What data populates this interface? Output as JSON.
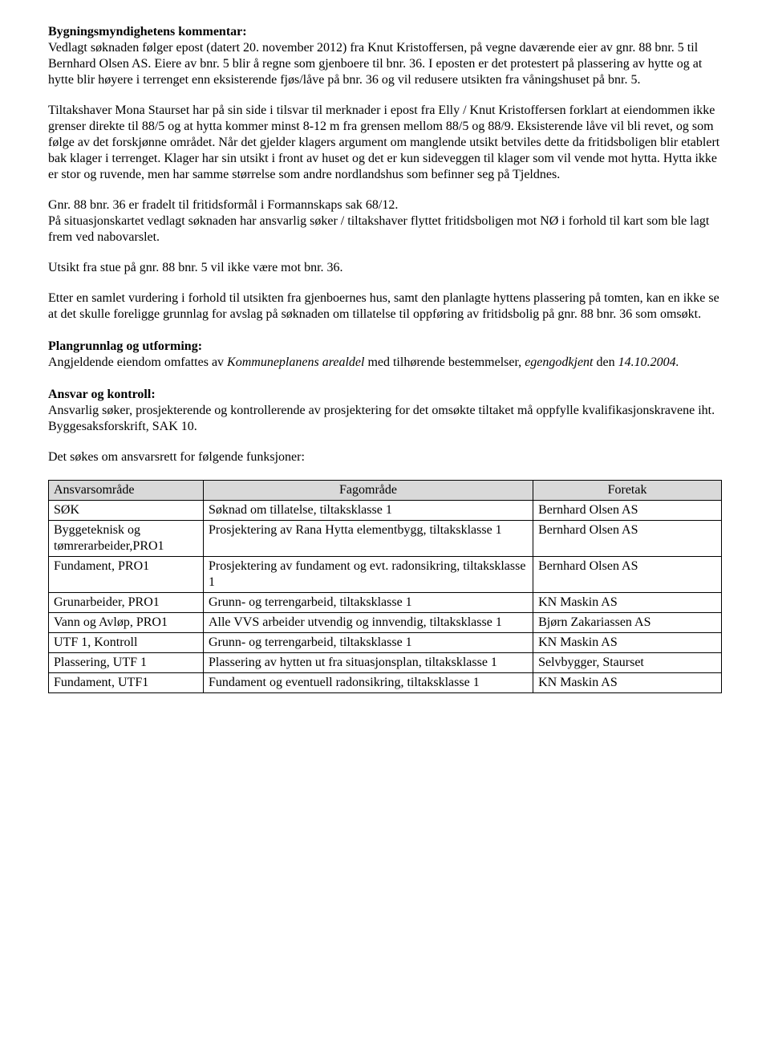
{
  "heading1": "Bygningsmyndighetens kommentar:",
  "intro": "Vedlagt søknaden følger epost (datert 20. november 2012) fra Knut Kristoffersen, på vegne daværende eier av gnr. 88 bnr. 5 til Bernhard Olsen AS. Eiere av bnr. 5 blir å regne som gjenboere til bnr. 36. I eposten er det protestert på plassering av hytte og at hytte blir høyere i terrenget enn eksisterende fjøs/låve på bnr. 36 og vil redusere utsikten fra våningshuset på bnr. 5.",
  "para2": "Tiltakshaver Mona Staurset har på sin side i tilsvar til merknader i epost fra Elly / Knut Kristoffersen forklart at eiendommen ikke grenser direkte til 88/5 og at hytta kommer minst 8-12 m fra grensen mellom 88/5 og 88/9. Eksisterende låve vil bli revet, og som følge av det forskjønne området. Når det gjelder klagers argument om manglende utsikt betviles dette da fritidsboligen blir etablert bak klager i terrenget. Klager har sin utsikt i front av huset og det er kun sideveggen til klager som vil vende mot hytta. Hytta ikke er stor og ruvende, men har samme størrelse som andre nordlandshus som befinner seg på Tjeldnes.",
  "para3": "Gnr. 88 bnr. 36 er fradelt til fritidsformål i Formannskaps sak 68/12.\nPå situasjonskartet vedlagt søknaden har ansvarlig søker / tiltakshaver flyttet fritidsboligen mot NØ i forhold til kart som ble lagt frem ved nabovarslet.",
  "para4": "Utsikt fra stue på gnr. 88 bnr. 5 vil ikke være mot bnr. 36.",
  "para5": "Etter en samlet vurdering i forhold til utsikten fra gjenboernes hus, samt den planlagte hyttens plassering på tomten, kan en ikke se at det skulle foreligge grunnlag for avslag på søknaden om tillatelse til oppføring av fritidsbolig på gnr. 88 bnr. 36 som omsøkt.",
  "plan_heading": "Plangrunnlag og utforming:",
  "plan_text_pre": "Angjeldende eiendom omfattes av ",
  "plan_text_italic1": "Kommuneplanens arealdel",
  "plan_text_mid": " med tilhørende bestemmelser, ",
  "plan_text_italic2": "egengodkjent",
  "plan_text_post": " den ",
  "plan_text_italic3": "14.10.2004.",
  "ansvar_heading": "Ansvar og kontroll:",
  "ansvar_para": "Ansvarlig søker, prosjekterende og kontrollerende av prosjektering for det omsøkte tiltaket må oppfylle kvalifikasjonskravene iht. Byggesaksforskrift, SAK 10.",
  "ansvar_lead": "Det søkes om ansvarsrett for følgende funksjoner:",
  "table": {
    "header_bg": "#d9d9d9",
    "border_color": "#000000",
    "columns": [
      "Ansvarsområde",
      "Fagområde",
      "Foretak"
    ],
    "rows": [
      [
        "SØK",
        "Søknad om tillatelse, tiltaksklasse 1",
        "Bernhard Olsen AS"
      ],
      [
        "Byggeteknisk og tømrerarbeider,PRO1",
        "Prosjektering av Rana Hytta elementbygg, tiltaksklasse 1",
        "Bernhard Olsen AS"
      ],
      [
        "Fundament, PRO1",
        "Prosjektering av fundament og evt. radonsikring, tiltaksklasse 1",
        "Bernhard Olsen AS"
      ],
      [
        "Grunarbeider, PRO1",
        "Grunn- og terrengarbeid, tiltaksklasse 1",
        "KN Maskin AS"
      ],
      [
        "Vann og Avløp, PRO1",
        "Alle VVS arbeider utvendig og innvendig, tiltaksklasse 1",
        "Bjørn Zakariassen AS"
      ],
      [
        "UTF 1, Kontroll",
        "Grunn- og terrengarbeid, tiltaksklasse 1",
        "KN Maskin AS"
      ],
      [
        "Plassering, UTF 1",
        "Plassering av hytten ut fra situasjonsplan, tiltaksklasse 1",
        "Selvbygger, Staurset"
      ],
      [
        "Fundament, UTF1",
        "Fundament og eventuell radonsikring, tiltaksklasse 1",
        "KN Maskin AS"
      ]
    ]
  }
}
